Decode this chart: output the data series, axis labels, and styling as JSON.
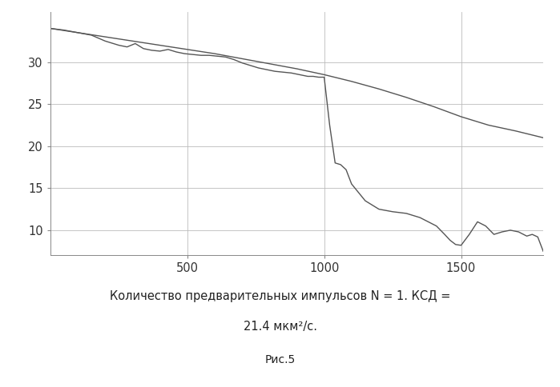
{
  "title_line1": "Количество предварительных импульсов N = 1. КСД =",
  "title_line2": "21.4 мкм²/с.",
  "caption": "Рис.5",
  "xlim": [
    0,
    1800
  ],
  "ylim": [
    7,
    36
  ],
  "xticks": [
    500,
    1000,
    1500
  ],
  "yticks": [
    10,
    15,
    20,
    25,
    30
  ],
  "background_color": "#ffffff",
  "grid_color": "#bbbbbb",
  "line_color": "#555555",
  "line1_x": [
    0,
    50,
    100,
    150,
    200,
    250,
    280,
    310,
    340,
    370,
    400,
    430,
    460,
    490,
    520,
    550,
    580,
    610,
    640,
    670,
    700,
    730,
    760,
    790,
    820,
    850,
    880,
    910,
    940,
    960,
    980,
    1000,
    1020,
    1040,
    1060,
    1080,
    1100,
    1150,
    1200,
    1250,
    1300,
    1350,
    1380,
    1410,
    1440,
    1460,
    1480,
    1500,
    1530,
    1560,
    1590,
    1620,
    1650,
    1680,
    1710,
    1740,
    1760,
    1780,
    1800
  ],
  "line1_y": [
    34.0,
    33.8,
    33.5,
    33.2,
    32.5,
    32.0,
    31.8,
    32.2,
    31.6,
    31.4,
    31.3,
    31.5,
    31.2,
    31.0,
    30.9,
    30.8,
    30.8,
    30.7,
    30.6,
    30.3,
    29.9,
    29.6,
    29.3,
    29.1,
    28.9,
    28.8,
    28.7,
    28.5,
    28.3,
    28.3,
    28.2,
    28.2,
    22.5,
    18.0,
    17.8,
    17.2,
    15.5,
    13.5,
    12.5,
    12.2,
    12.0,
    11.5,
    11.0,
    10.5,
    9.5,
    8.8,
    8.3,
    8.2,
    9.5,
    11.0,
    10.5,
    9.5,
    9.8,
    10.0,
    9.8,
    9.3,
    9.5,
    9.2,
    7.5
  ],
  "line2_x": [
    0,
    100,
    200,
    300,
    400,
    500,
    600,
    700,
    800,
    900,
    1000,
    1100,
    1200,
    1300,
    1400,
    1500,
    1600,
    1700,
    1800
  ],
  "line2_y": [
    34.0,
    33.5,
    33.0,
    32.5,
    32.0,
    31.5,
    31.0,
    30.4,
    29.8,
    29.2,
    28.5,
    27.7,
    26.8,
    25.8,
    24.7,
    23.5,
    22.5,
    21.8,
    21.0
  ]
}
